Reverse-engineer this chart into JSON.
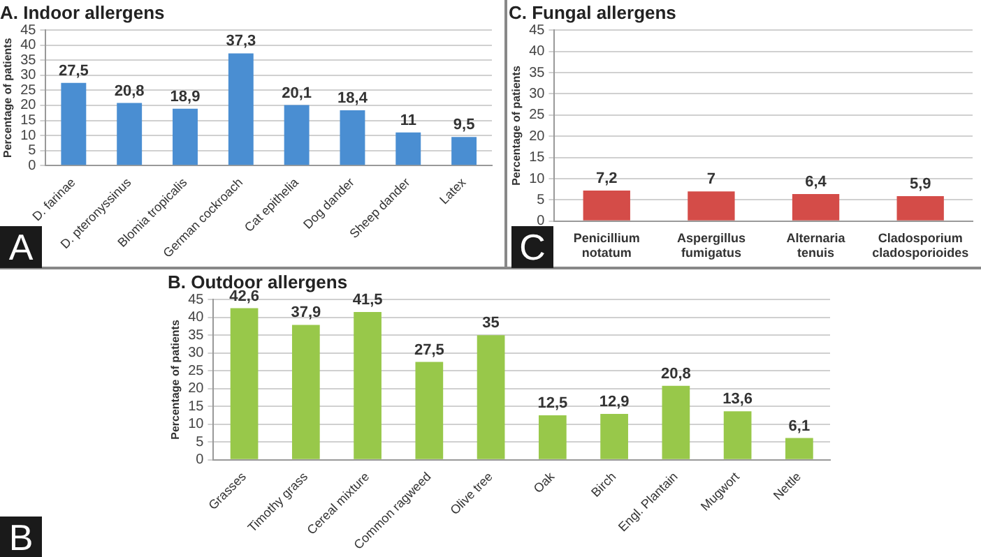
{
  "chart_data": [
    {
      "type": "bar",
      "title": "A. Indoor allergens",
      "ylabel": "Percentage of patients",
      "categories": [
        "D. farinae",
        "D. pteronyssinus",
        "Blomia tropicalis",
        "German cockroach",
        "Cat epithelia",
        "Dog dander",
        "Sheep dander",
        "Latex"
      ],
      "values": [
        27.5,
        20.8,
        18.9,
        37.3,
        20.1,
        18.4,
        11,
        9.5
      ],
      "value_labels": [
        "27,5",
        "20,8",
        "18,9",
        "37,3",
        "20,1",
        "18,4",
        "11",
        "9,5"
      ],
      "color": "#4a8ed2",
      "ylim": [
        0,
        45
      ],
      "yticks": [
        0,
        5,
        10,
        15,
        20,
        25,
        30,
        35,
        40,
        45
      ],
      "grid": "y",
      "annotations": [
        "A"
      ]
    },
    {
      "type": "bar",
      "title": "C. Fungal allergens",
      "ylabel": "Percentage of patients",
      "categories": [
        "Penicillium notatum",
        "Aspergillus fumigatus",
        "Alternaria tenuis",
        "Cladosporium cladosporioides"
      ],
      "values": [
        7.2,
        7,
        6.4,
        5.9
      ],
      "value_labels": [
        "7,2",
        "7",
        "6,4",
        "5,9"
      ],
      "color": "#d44c48",
      "ylim": [
        0,
        45
      ],
      "yticks": [
        0,
        5,
        10,
        15,
        20,
        25,
        30,
        35,
        40,
        45
      ],
      "grid": "y",
      "annotations": [
        "C"
      ]
    },
    {
      "type": "bar",
      "title": "B. Outdoor allergens",
      "ylabel": "Percentage of patients",
      "categories": [
        "Grasses",
        "Timothy grass",
        "Cereal mixture",
        "Common ragweed",
        "Olive tree",
        "Oak",
        "Birch",
        "Engl. Plantain",
        "Mugwort",
        "Nettle"
      ],
      "values": [
        42.6,
        37.9,
        41.5,
        27.5,
        35,
        12.5,
        12.9,
        20.8,
        13.6,
        6.1
      ],
      "value_labels": [
        "42,6",
        "37,9",
        "41,5",
        "27,5",
        "35",
        "12,5",
        "12,9",
        "20,8",
        "13,6",
        "6,1"
      ],
      "color": "#98c84a",
      "ylim": [
        0,
        45
      ],
      "yticks": [
        0,
        5,
        10,
        15,
        20,
        25,
        30,
        35,
        40,
        45
      ],
      "grid": "y",
      "annotations": [
        "B"
      ]
    }
  ]
}
